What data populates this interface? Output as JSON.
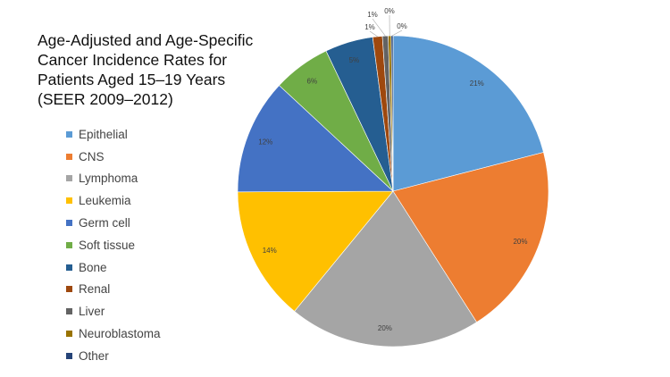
{
  "chart_data": {
    "type": "pie",
    "title_lines": [
      "Age-Adjusted and Age-Specific",
      "Cancer Incidence Rates for",
      "Patients Aged 15–19 Years",
      "(SEER 2009–2012)"
    ],
    "legend_position": "left",
    "slices": [
      {
        "label": "Epithelial",
        "value": 21,
        "display": "21%",
        "color": "#5b9bd5"
      },
      {
        "label": "CNS",
        "value": 20,
        "display": "20%",
        "color": "#ed7d31"
      },
      {
        "label": "Lymphoma",
        "value": 20,
        "display": "20%",
        "color": "#a5a5a5"
      },
      {
        "label": "Leukemia",
        "value": 14,
        "display": "14%",
        "color": "#ffc000"
      },
      {
        "label": "Germ cell",
        "value": 12,
        "display": "12%",
        "color": "#4472c4"
      },
      {
        "label": "Soft tissue",
        "value": 6,
        "display": "6%",
        "color": "#70ad47"
      },
      {
        "label": "Bone",
        "value": 5,
        "display": "5%",
        "color": "#255e91"
      },
      {
        "label": "Renal",
        "value": 1,
        "display": "1%",
        "color": "#9e480e"
      },
      {
        "label": "Liver",
        "value": 0.6,
        "display": "1%",
        "color": "#636363"
      },
      {
        "label": "Neuroblastoma",
        "value": 0.3,
        "display": "0%",
        "color": "#997300"
      },
      {
        "label": "Other",
        "value": 0.2,
        "display": "0%",
        "color": "#264478"
      }
    ]
  }
}
